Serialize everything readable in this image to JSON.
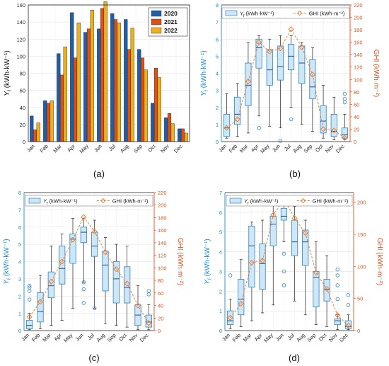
{
  "figure": {
    "panel_labels": [
      "(a)",
      "(b)",
      "(c)",
      "(d)"
    ],
    "months": [
      "Jan",
      "Feb",
      "Mar",
      "Apr",
      "May",
      "Jun",
      "Jul",
      "Aug",
      "Sep",
      "Oct",
      "Nov",
      "Dec"
    ]
  },
  "colors": {
    "y2020": "#1f5fa8",
    "y2021": "#d95319",
    "y2022": "#edb120",
    "box_fill": "#cfe6f7",
    "box_edge": "#2e86c1",
    "ghi": "#e8823c",
    "axis_left": "#1a8ccb",
    "axis_right": "#d9531e"
  },
  "chart_data": [
    {
      "type": "bar",
      "panel": "(a)",
      "ylabel": "Y_f (kWh·kW⁻¹)",
      "ylim": [
        0,
        160
      ],
      "yticks": [
        0,
        20,
        40,
        60,
        80,
        100,
        120,
        140,
        160
      ],
      "grid": true,
      "legend_position": "top-right",
      "categories": [
        "Jan",
        "Feb",
        "Mar",
        "Apr",
        "May",
        "Jun",
        "Jul",
        "Aug",
        "Sep",
        "Oct",
        "Nov",
        "Dec"
      ],
      "series": [
        {
          "name": "2020",
          "values": [
            30,
            48,
            103,
            151,
            128,
            132,
            150,
            143,
            108,
            45,
            28,
            15
          ]
        },
        {
          "name": "2021",
          "values": [
            14,
            45,
            78,
            98,
            132,
            156,
            143,
            108,
            98,
            86,
            33,
            15
          ]
        },
        {
          "name": "2022",
          "values": [
            22,
            48,
            111,
            139,
            154,
            164,
            139,
            133,
            84,
            75,
            21,
            10
          ]
        }
      ]
    },
    {
      "type": "box",
      "panel": "(b)",
      "ylabel_left": "Y_f (kWh·kW⁻¹)",
      "ylabel_right": "GHI (kWh·m⁻²)",
      "ylim_left": [
        0,
        8
      ],
      "ylim_right": [
        0,
        220
      ],
      "yticks_left": [
        0,
        1,
        2,
        3,
        4,
        5,
        6,
        7,
        8
      ],
      "yticks_right": [
        0,
        20,
        40,
        60,
        80,
        100,
        120,
        140,
        160,
        180,
        200,
        220
      ],
      "legend": [
        "Y_f (kWh·kW⁻¹)",
        "GHI (kWh·m⁻²)"
      ],
      "boxes": [
        {
          "wl": 0.2,
          "q1": 0.3,
          "med": 0.8,
          "q3": 1.6,
          "wh": 2.8,
          "out": []
        },
        {
          "wl": 0.3,
          "q1": 1.0,
          "med": 1.6,
          "q3": 2.6,
          "wh": 3.4,
          "out": []
        },
        {
          "wl": 0.5,
          "q1": 2.1,
          "med": 3.3,
          "q3": 4.6,
          "wh": 5.8,
          "out": []
        },
        {
          "wl": 1.5,
          "q1": 4.3,
          "med": 5.5,
          "q3": 6.0,
          "wh": 6.2,
          "out": [
            0.8
          ]
        },
        {
          "wl": 0.9,
          "q1": 3.3,
          "med": 4.2,
          "q3": 5.4,
          "wh": 6.0,
          "out": []
        },
        {
          "wl": 0.8,
          "q1": 3.6,
          "med": 4.4,
          "q3": 5.6,
          "wh": 6.2,
          "out": [
            0.05
          ]
        },
        {
          "wl": 2.0,
          "q1": 4.2,
          "med": 5.0,
          "q3": 5.7,
          "wh": 6.2,
          "out": [
            1.3
          ]
        },
        {
          "wl": 1.0,
          "q1": 3.4,
          "med": 4.6,
          "q3": 5.6,
          "wh": 5.8,
          "out": []
        },
        {
          "wl": 0.6,
          "q1": 2.5,
          "med": 3.2,
          "q3": 4.8,
          "wh": 5.5,
          "out": []
        },
        {
          "wl": 0.2,
          "q1": 0.5,
          "med": 1.2,
          "q3": 2.1,
          "wh": 3.3,
          "out": []
        },
        {
          "wl": 0.1,
          "q1": 0.3,
          "med": 0.6,
          "q3": 1.6,
          "wh": 2.6,
          "out": []
        },
        {
          "wl": 0.1,
          "q1": 0.2,
          "med": 0.4,
          "q3": 0.8,
          "wh": 1.6,
          "out": [
            2.3,
            2.5,
            2.8
          ]
        }
      ],
      "ghi": [
        22,
        36,
        97,
        160,
        145,
        150,
        181,
        152,
        108,
        20,
        18,
        6
      ]
    },
    {
      "type": "box",
      "panel": "(c)",
      "ylabel_left": "Y_f (kWh·kW⁻¹)",
      "ylabel_right": "GHI (kWh·m⁻²)",
      "ylim_left": [
        0,
        8
      ],
      "ylim_right": [
        0,
        220
      ],
      "yticks_left": [
        0,
        1,
        2,
        3,
        4,
        5,
        6,
        7,
        8
      ],
      "yticks_right": [
        0,
        20,
        40,
        60,
        80,
        100,
        120,
        140,
        160,
        180,
        200,
        220
      ],
      "legend": [
        "Y_f (kWh·kW⁻¹)",
        "GHI (kWh·m⁻²)"
      ],
      "boxes": [
        {
          "wl": 0.05,
          "q1": 0.1,
          "med": 0.3,
          "q3": 0.6,
          "wh": 1.0,
          "out": [
            1.8,
            2.3,
            2.5,
            2.6
          ]
        },
        {
          "wl": 0.1,
          "q1": 0.5,
          "med": 1.1,
          "q3": 2.2,
          "wh": 3.2,
          "out": []
        },
        {
          "wl": 0.3,
          "q1": 1.9,
          "med": 2.6,
          "q3": 3.4,
          "wh": 4.9,
          "out": []
        },
        {
          "wl": 0.6,
          "q1": 2.7,
          "med": 3.6,
          "q3": 4.9,
          "wh": 5.6,
          "out": []
        },
        {
          "wl": 1.3,
          "q1": 3.9,
          "med": 5.3,
          "q3": 5.6,
          "wh": 6.5,
          "out": []
        },
        {
          "wl": 2.8,
          "q1": 5.1,
          "med": 5.7,
          "q3": 6.0,
          "wh": 6.5,
          "out": [
            1.6,
            2.4,
            2.8
          ]
        },
        {
          "wl": 1.3,
          "q1": 4.3,
          "med": 4.9,
          "q3": 5.7,
          "wh": 6.4,
          "out": [
            1.3
          ]
        },
        {
          "wl": 0.4,
          "q1": 2.3,
          "med": 3.8,
          "q3": 4.6,
          "wh": 5.4,
          "out": []
        },
        {
          "wl": 0.3,
          "q1": 1.6,
          "med": 3.0,
          "q3": 4.0,
          "wh": 5.0,
          "out": []
        },
        {
          "wl": 0.2,
          "q1": 1.6,
          "med": 2.5,
          "q3": 3.7,
          "wh": 4.9,
          "out": []
        },
        {
          "wl": 0.05,
          "q1": 0.3,
          "med": 0.9,
          "q3": 1.5,
          "wh": 2.6,
          "out": []
        },
        {
          "wl": 0.05,
          "q1": 0.2,
          "med": 0.5,
          "q3": 0.9,
          "wh": 1.5,
          "out": [
            2.1,
            2.3
          ]
        }
      ],
      "ghi": [
        22,
        46,
        78,
        110,
        145,
        181,
        158,
        125,
        98,
        75,
        40,
        12
      ]
    },
    {
      "type": "box",
      "panel": "(d)",
      "ylabel_left": "Y_f (kWh·kW⁻¹)",
      "ylabel_right": "GHI (kWh·m⁻²)",
      "ylim_left": [
        0,
        7
      ],
      "ylim_right": [
        0,
        215
      ],
      "yticks_left": [
        0,
        1,
        2,
        3,
        4,
        5,
        6,
        7
      ],
      "yticks_right": [
        0,
        50,
        100,
        150,
        200
      ],
      "legend": [
        "Y_f (kWh·kW⁻¹)",
        "GHI (kWh·m⁻²)"
      ],
      "boxes": [
        {
          "wl": 0.1,
          "q1": 0.3,
          "med": 0.5,
          "q3": 1.0,
          "wh": 1.6,
          "out": [
            2.8
          ]
        },
        {
          "wl": 0.2,
          "q1": 0.8,
          "med": 1.6,
          "q3": 2.6,
          "wh": 3.6,
          "out": []
        },
        {
          "wl": 0.5,
          "q1": 2.2,
          "med": 4.3,
          "q3": 5.3,
          "wh": 5.5,
          "out": []
        },
        {
          "wl": 0.9,
          "q1": 2.1,
          "med": 3.4,
          "q3": 4.4,
          "wh": 5.6,
          "out": []
        },
        {
          "wl": 1.3,
          "q1": 4.3,
          "med": 5.4,
          "q3": 5.8,
          "wh": 6.4,
          "out": []
        },
        {
          "wl": 4.5,
          "q1": 5.6,
          "med": 5.8,
          "q3": 6.2,
          "wh": 6.4,
          "out": [
            2.3,
            3.0,
            3.9
          ]
        },
        {
          "wl": 1.5,
          "q1": 3.8,
          "med": 4.5,
          "q3": 5.6,
          "wh": 6.3,
          "out": []
        },
        {
          "wl": 0.8,
          "q1": 3.3,
          "med": 4.5,
          "q3": 5.1,
          "wh": 5.6,
          "out": []
        },
        {
          "wl": 0.3,
          "q1": 1.2,
          "med": 2.7,
          "q3": 3.0,
          "wh": 4.5,
          "out": []
        },
        {
          "wl": 0.2,
          "q1": 1.5,
          "med": 2.1,
          "q3": 2.6,
          "wh": 3.8,
          "out": []
        },
        {
          "wl": 0.05,
          "q1": 0.3,
          "med": 0.5,
          "q3": 0.6,
          "wh": 0.8,
          "out": [
            1.6,
            2.3,
            2.8,
            3.1
          ]
        },
        {
          "wl": 0.05,
          "q1": 0.1,
          "med": 0.2,
          "q3": 0.5,
          "wh": 0.8,
          "out": [
            1.3,
            1.8
          ]
        }
      ],
      "ghi": [
        20,
        42,
        106,
        109,
        180,
        205,
        175,
        152,
        90,
        65,
        24,
        8
      ]
    }
  ]
}
